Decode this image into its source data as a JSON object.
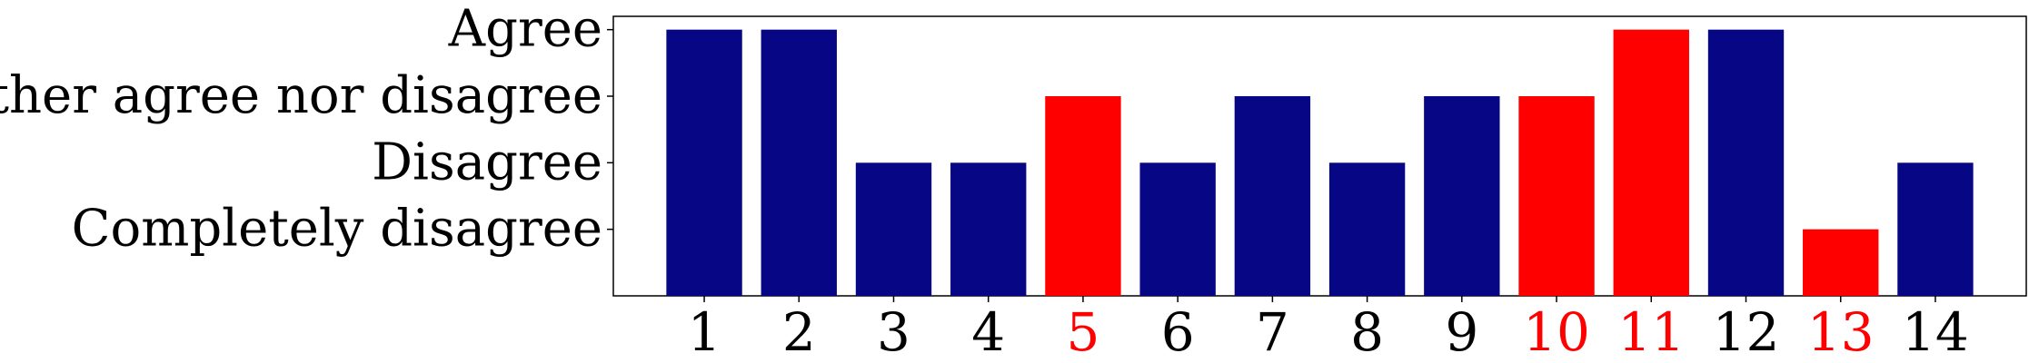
{
  "chart_data": {
    "type": "bar",
    "categories": [
      "1",
      "2",
      "3",
      "4",
      "5",
      "6",
      "7",
      "8",
      "9",
      "10",
      "11",
      "12",
      "13",
      "14"
    ],
    "values": [
      4,
      4,
      2,
      2,
      3,
      2,
      3,
      2,
      3,
      3,
      4,
      4,
      1,
      2
    ],
    "highlighted": [
      false,
      false,
      false,
      false,
      true,
      false,
      false,
      false,
      false,
      true,
      true,
      false,
      true,
      false
    ],
    "y_ticks": [
      {
        "value": 1,
        "label": "Completely disagree"
      },
      {
        "value": 2,
        "label": "Disagree"
      },
      {
        "value": 3,
        "label": "Neither agree nor disagree"
      },
      {
        "value": 4,
        "label": "Agree"
      }
    ],
    "ylim": [
      0,
      4.2
    ],
    "title": "",
    "xlabel": "",
    "ylabel": "",
    "grid": false,
    "colors": {
      "bar_default": "#070785",
      "bar_highlight": "#ff0000",
      "label_default": "#000000",
      "label_highlight": "#ff0000"
    }
  }
}
